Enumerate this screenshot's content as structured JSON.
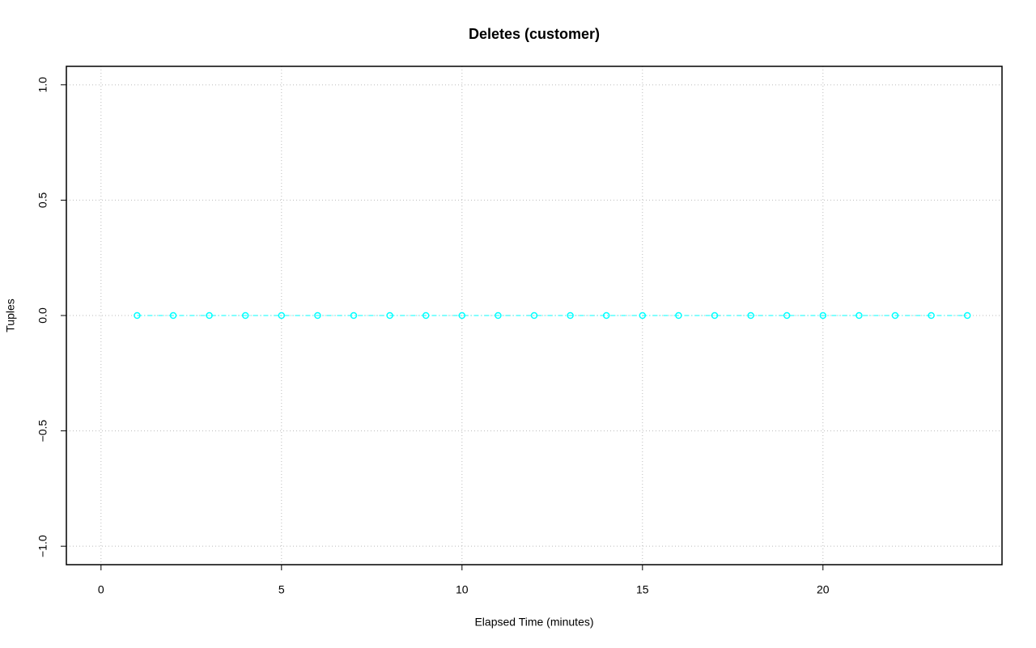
{
  "chart_data": {
    "type": "line",
    "title": "Deletes (customer)",
    "x_label": "Elapsed Time (minutes)",
    "y_label": "Tuples",
    "x": [
      1,
      2,
      3,
      4,
      5,
      6,
      7,
      8,
      9,
      10,
      11,
      12,
      13,
      14,
      15,
      16,
      17,
      18,
      19,
      20,
      21,
      22,
      23,
      24
    ],
    "values": [
      0,
      0,
      0,
      0,
      0,
      0,
      0,
      0,
      0,
      0,
      0,
      0,
      0,
      0,
      0,
      0,
      0,
      0,
      0,
      0,
      0,
      0,
      0,
      0
    ],
    "color": "#00ffff",
    "xlim": [
      -0.96,
      24.96
    ],
    "xticks": [
      0,
      5,
      10,
      15,
      20
    ],
    "ylim": [
      -1.08,
      1.08
    ],
    "yticks": [
      {
        "value": -1,
        "label": "−1.0"
      },
      {
        "value": -0.5,
        "label": "−0.5"
      },
      {
        "value": 0,
        "label": "0.0"
      },
      {
        "value": 0.5,
        "label": "0.5"
      },
      {
        "value": 1,
        "label": "1.0"
      }
    ],
    "grid": true
  }
}
